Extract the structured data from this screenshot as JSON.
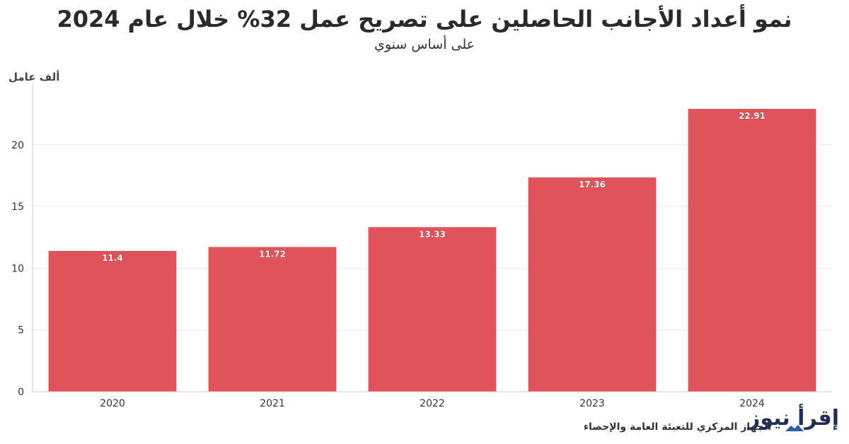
{
  "chart_data": {
    "type": "bar",
    "title": "نمو أعداد الأجانب الحاصلين على تصريح عمل 32% خلال عام 2024",
    "subtitle": "على أساس سنوي",
    "ylabel": "ألف عامل",
    "xlabel": "",
    "categories": [
      "2020",
      "2021",
      "2022",
      "2023",
      "2024"
    ],
    "values": [
      11.4,
      11.72,
      13.33,
      17.36,
      22.91
    ],
    "data_labels": [
      "11.4",
      "11.72",
      "13.33",
      "17.36",
      "22.91"
    ],
    "ylim": [
      0,
      25
    ],
    "yticks": [
      0,
      5,
      10,
      15,
      20
    ],
    "ytick_labels": [
      "0",
      "5",
      "10",
      "15",
      "20"
    ],
    "grid": true,
    "bar_color": "#e1535a",
    "grid_color": "#e8e8e8"
  },
  "source": "الجهاز المركزي للتعبئة العامة والإحصاء",
  "watermark": "إقرأ نيوز"
}
